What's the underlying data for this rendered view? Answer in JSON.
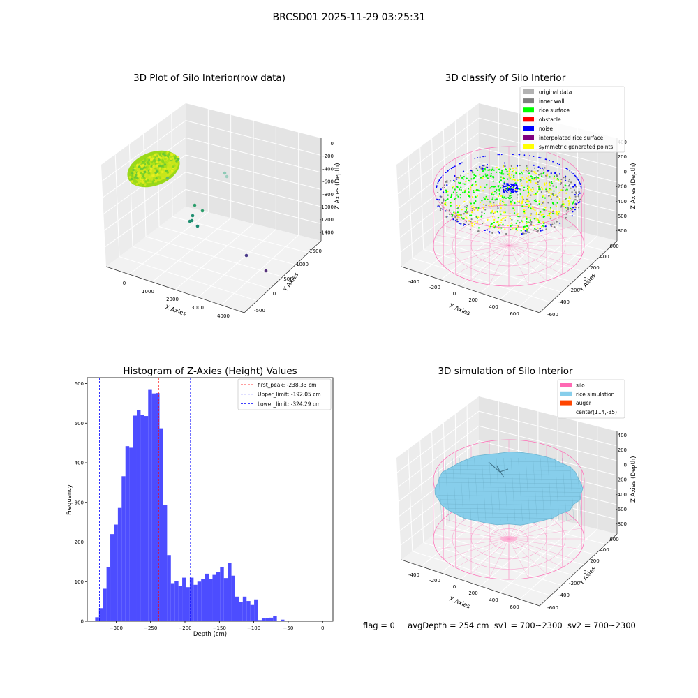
{
  "suptitle": "BRCSD01 2025-11-29 03:25:31",
  "footer": {
    "flag": "flag = 0",
    "avg_depth": "avgDepth = 254 cm",
    "sv1": "sv1 = 700~2300",
    "sv2": "sv2 = 700~2300"
  },
  "colors": {
    "original_data": "#b3b3b3",
    "inner_wall": "#808080",
    "rice_surface": "#00ff00",
    "obstacle": "#ff0000",
    "noise": "#0000ff",
    "interpolated_rice_surface": "#800080",
    "symmetric_generated_points": "#ffff00",
    "silo": "#ff69b4",
    "rice_simulation": "#87ceeb",
    "auger": "#ff4500",
    "hist_bar": "#4d4dff",
    "first_peak_line": "#ff0000",
    "limit_line": "#0000ff",
    "pane": "#f2f2f2"
  },
  "panel1": {
    "title": "3D Plot of Silo Interior(row data)",
    "xlabel": "X Axies",
    "ylabel": "Y Axies",
    "zlabel": "Z Axies (Depth)",
    "xticks": [
      "0",
      "1000",
      "2000",
      "3000",
      "4000"
    ],
    "yticks": [
      "-500",
      "0",
      "500",
      "1000",
      "1500"
    ],
    "zticks": [
      "0",
      "-200",
      "-400",
      "-600",
      "-800",
      "-1000",
      "-1200",
      "-1400"
    ]
  },
  "panel2": {
    "title": "3D classify of Silo Interior",
    "xlabel": "X Axies",
    "ylabel": "Y Axies",
    "zlabel": "Z Axies (Depth)",
    "xticks": [
      "-400",
      "-200",
      "0",
      "200",
      "400",
      "600"
    ],
    "yticks": [
      "-600",
      "-400",
      "-200",
      "0",
      "200",
      "400",
      "600"
    ],
    "zticks": [
      "400",
      "200",
      "0",
      "-200",
      "-400",
      "-600",
      "-800"
    ],
    "legend": [
      {
        "label": "original data",
        "color_key": "original_data"
      },
      {
        "label": "inner wall",
        "color_key": "inner_wall"
      },
      {
        "label": "rice surface",
        "color_key": "rice_surface"
      },
      {
        "label": "obstacle",
        "color_key": "obstacle"
      },
      {
        "label": "noise",
        "color_key": "noise"
      },
      {
        "label": "interpolated rice surface",
        "color_key": "interpolated_rice_surface"
      },
      {
        "label": "symmetric generated points",
        "color_key": "symmetric_generated_points"
      }
    ]
  },
  "panel4": {
    "title": "3D simulation of Silo Interior",
    "xlabel": "X Axies",
    "ylabel": "Y Axies",
    "zlabel": "Z Axies (Depth)",
    "xticks": [
      "-400",
      "-200",
      "0",
      "200",
      "400",
      "600"
    ],
    "yticks": [
      "-600",
      "-400",
      "-200",
      "0",
      "200",
      "400",
      "600"
    ],
    "zticks": [
      "400",
      "200",
      "0",
      "-200",
      "-400",
      "-600",
      "-800"
    ],
    "legend": [
      {
        "label": "silo",
        "color_key": "silo",
        "swatch": true
      },
      {
        "label": "rice simulation",
        "color_key": "rice_simulation",
        "swatch": true
      },
      {
        "label": "auger",
        "color_key": "auger",
        "swatch": true
      },
      {
        "label": "center(114,-35)",
        "color_key": "",
        "swatch": false
      }
    ]
  },
  "chart_data": [
    {
      "type": "scatter",
      "title": "3D Plot of Silo Interior(row data)",
      "xlabel": "X Axies",
      "ylabel": "Y Axies",
      "zlabel": "Z Axies (Depth)",
      "xlim": [
        -500,
        4500
      ],
      "ylim": [
        -600,
        1700
      ],
      "zlim": [
        -1500,
        0
      ]
    },
    {
      "type": "scatter",
      "title": "3D classify of Silo Interior",
      "xlabel": "X Axies",
      "ylabel": "Y Axies",
      "zlabel": "Z Axies (Depth)",
      "xlim": [
        -500,
        700
      ],
      "ylim": [
        -650,
        650
      ],
      "zlim": [
        -900,
        400
      ],
      "series": [
        {
          "name": "original data"
        },
        {
          "name": "inner wall"
        },
        {
          "name": "rice surface"
        },
        {
          "name": "obstacle"
        },
        {
          "name": "noise"
        },
        {
          "name": "interpolated rice surface"
        },
        {
          "name": "symmetric generated points"
        }
      ]
    },
    {
      "type": "bar",
      "title": "Histogram of Z-Axies (Height) Values",
      "xlabel": "Depth (cm)",
      "ylabel": "Frequency",
      "xlim": [
        -342,
        15
      ],
      "ylim": [
        0,
        615
      ],
      "xticks": [
        -300,
        -250,
        -200,
        -150,
        -100,
        -50,
        0
      ],
      "yticks": [
        0,
        100,
        200,
        300,
        400,
        500,
        600
      ],
      "bin_start": -330.5,
      "bin_width": 5.5,
      "values": [
        10,
        33,
        82,
        137,
        220,
        244,
        286,
        366,
        442,
        438,
        519,
        533,
        521,
        518,
        584,
        575,
        576,
        487,
        293,
        167,
        96,
        101,
        89,
        110,
        86,
        110,
        92,
        100,
        107,
        120,
        106,
        117,
        124,
        136,
        109,
        148,
        115,
        62,
        48,
        62,
        51,
        41,
        55,
        3,
        7,
        8,
        9,
        14,
        0,
        4
      ],
      "vlines": [
        {
          "label": "first_peak: -238.33 cm",
          "x": -238.33,
          "color_key": "first_peak_line"
        },
        {
          "label": "Upper_limit: -192.05 cm",
          "x": -192.05,
          "color_key": "limit_line"
        },
        {
          "label": "Lower_limit: -324.29 cm",
          "x": -324.29,
          "color_key": "limit_line"
        }
      ]
    },
    {
      "type": "area",
      "title": "3D simulation of Silo Interior",
      "xlabel": "X Axies",
      "ylabel": "Y Axies",
      "zlabel": "Z Axies (Depth)",
      "xlim": [
        -500,
        700
      ],
      "ylim": [
        -650,
        650
      ],
      "zlim": [
        -900,
        400
      ],
      "series": [
        {
          "name": "silo"
        },
        {
          "name": "rice simulation"
        },
        {
          "name": "auger"
        }
      ],
      "annotations": [
        "center(114,-35)"
      ]
    }
  ]
}
